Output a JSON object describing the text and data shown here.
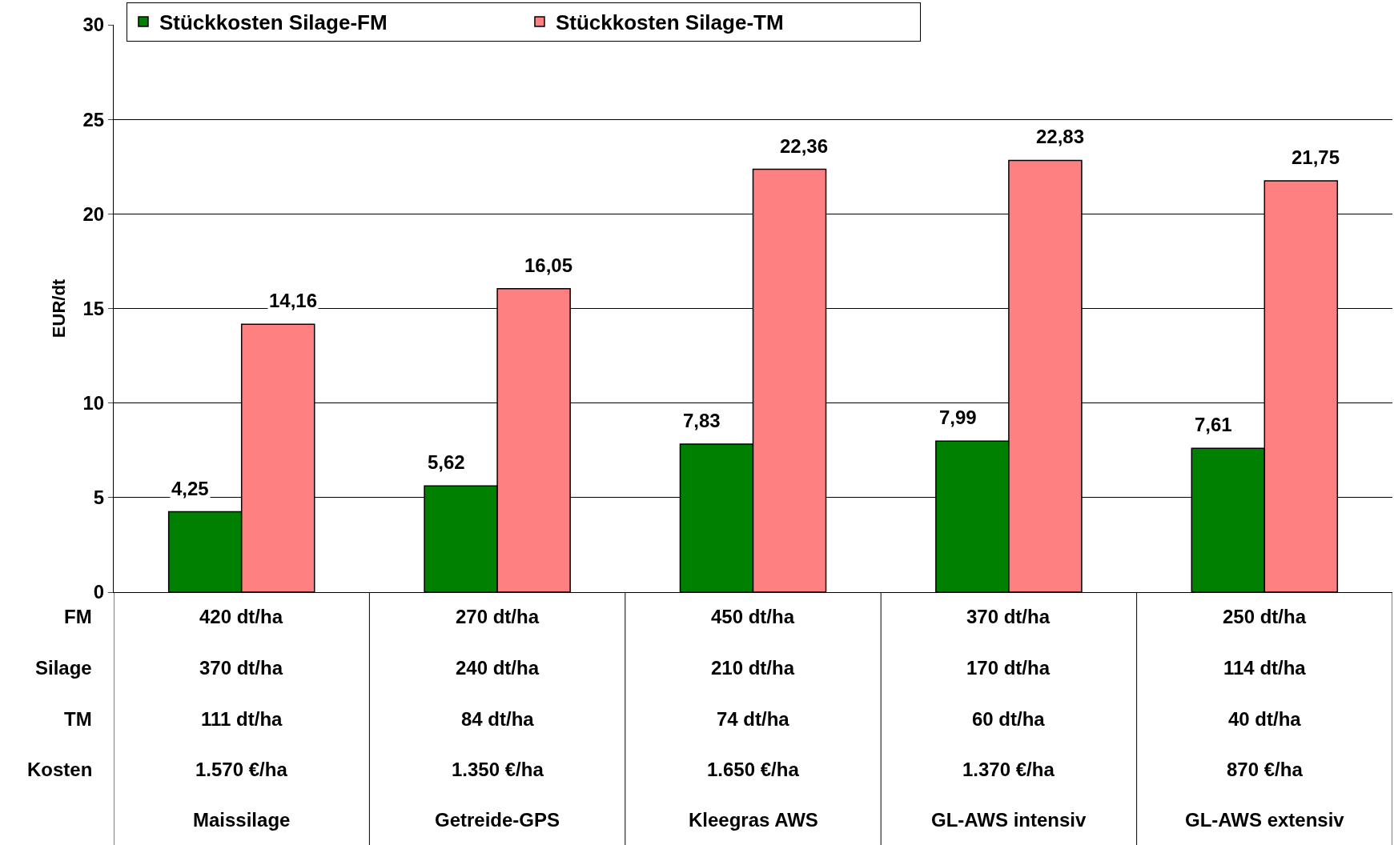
{
  "chart_data": {
    "type": "bar",
    "ylabel": "EUR/dt",
    "categories": [
      "420 dt/ha\n370 dt/ha\n111 dt/ha\n1.570 €/ha\nMaissilage",
      "270 dt/ha\n240 dt/ha\n84 dt/ha\n1.350 €/ha\nGetreide-GPS",
      "450 dt/ha\n210 dt/ha\n74 dt/ha\n1.650 €/ha\nKleegras AWS",
      "370 dt/ha\n170 dt/ha\n60 dt/ha\n1.370 €/ha\nGL-AWS intensiv",
      "250 dt/ha\n114 dt/ha\n40 dt/ha\n870 €/ha\nGL-AWS extensiv"
    ],
    "series": [
      {
        "name": "Stückkosten Silage-FM",
        "color": "#008000",
        "values": [
          4.25,
          5.62,
          7.83,
          7.99,
          7.61
        ],
        "value_labels": [
          "4,25",
          "5,62",
          "7,83",
          "7,99",
          "7,61"
        ]
      },
      {
        "name": "Stückkosten Silage-TM",
        "color": "#ff8080",
        "values": [
          14.16,
          16.05,
          22.36,
          22.83,
          21.75
        ],
        "value_labels": [
          "14,16",
          "16,05",
          "22,36",
          "22,83",
          "21,75"
        ]
      }
    ],
    "annotations": [
      "FM",
      "Silage",
      "TM",
      "Kosten"
    ],
    "ylim": [
      0,
      30
    ],
    "yticks": [
      0,
      5,
      10,
      15,
      20,
      25,
      30
    ],
    "grid": "y",
    "legend": "top left"
  }
}
